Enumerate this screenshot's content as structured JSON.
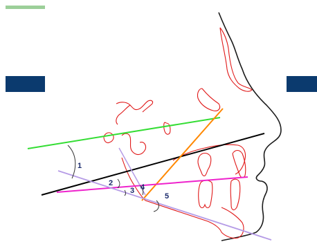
{
  "labels": {
    "angle_1": "1",
    "angle_2": "2",
    "angle_3": "3",
    "angle_4": "4",
    "angle_5": "5"
  },
  "colors": {
    "background": "#ffffff",
    "profile_line": "#1a1a1a",
    "anatomy_tracing": "#e01818",
    "green_line": "#33dd33",
    "black_line": "#000000",
    "orange_line": "#ff8800",
    "magenta_line": "#ee22cc",
    "lavender_line": "#b59be6",
    "label_text": "#1a2a6c",
    "tab_navy": "#0b3a6e",
    "top_bar_green": "#9ccf99"
  },
  "decor": {
    "top_bar_icon": "top-bar",
    "left_tab_icon": "left-navy-tab",
    "right_tab_icon": "right-navy-tab"
  }
}
